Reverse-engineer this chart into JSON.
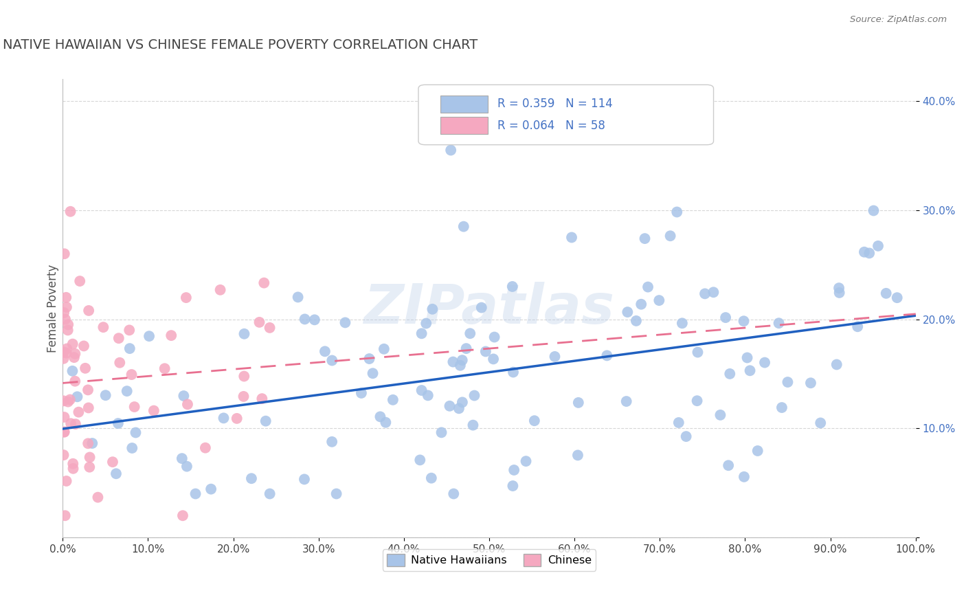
{
  "title": "NATIVE HAWAIIAN VS CHINESE FEMALE POVERTY CORRELATION CHART",
  "source": "Source: ZipAtlas.com",
  "ylabel": "Female Poverty",
  "xlim": [
    0,
    1.0
  ],
  "ylim": [
    0,
    0.42
  ],
  "xticks": [
    0.0,
    0.1,
    0.2,
    0.3,
    0.4,
    0.5,
    0.6,
    0.7,
    0.8,
    0.9,
    1.0
  ],
  "yticks": [
    0.0,
    0.1,
    0.2,
    0.3,
    0.4
  ],
  "xtick_labels": [
    "0.0%",
    "10.0%",
    "20.0%",
    "30.0%",
    "40.0%",
    "50.0%",
    "60.0%",
    "70.0%",
    "80.0%",
    "90.0%",
    "100.0%"
  ],
  "ytick_labels": [
    "",
    "10.0%",
    "20.0%",
    "30.0%",
    "40.0%"
  ],
  "blue_color": "#a8c4e8",
  "pink_color": "#f5a8c0",
  "blue_line_color": "#2060c0",
  "pink_line_color": "#e87090",
  "r_blue": 0.359,
  "n_blue": 114,
  "r_pink": 0.064,
  "n_pink": 58,
  "legend_blue_label": "Native Hawaiians",
  "legend_pink_label": "Chinese",
  "watermark": "ZIPatlas",
  "background_color": "#ffffff",
  "grid_color": "#cccccc",
  "title_color": "#444444",
  "ytick_color": "#4472c4",
  "xtick_color": "#444444"
}
